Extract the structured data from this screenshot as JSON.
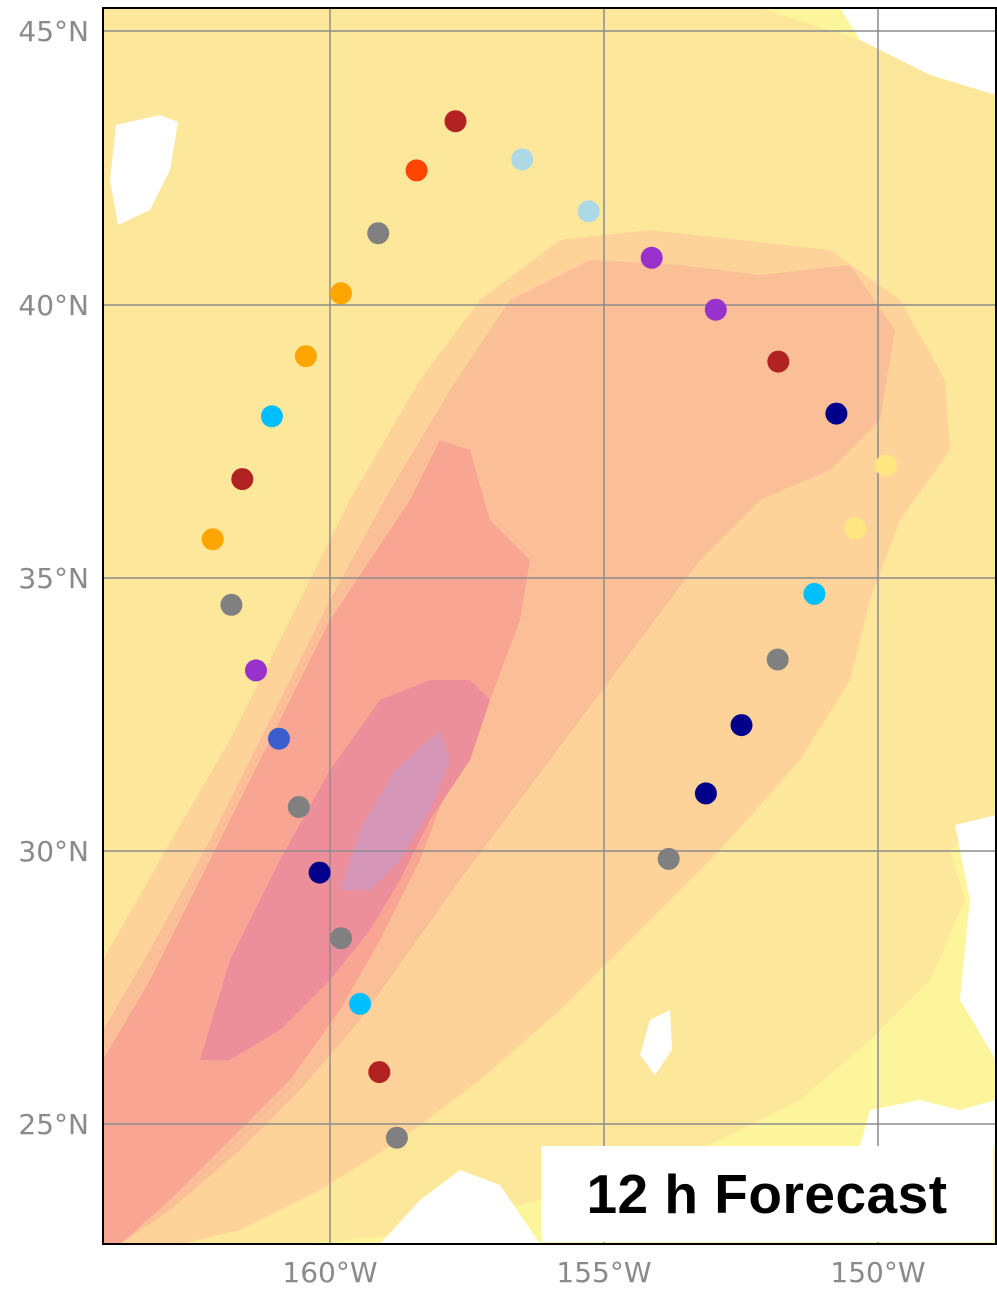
{
  "map": {
    "lat_labels": [
      "45°N",
      "40°N",
      "35°N",
      "30°N",
      "25°N"
    ],
    "lon_labels": [
      "160°W",
      "155°W",
      "150°W"
    ],
    "label": "12 h Forecast",
    "colors": {
      "ocean_light": "#fdf59b",
      "band_1": "#fde79a",
      "band_2": "#fdd39a",
      "band_3": "#fbbf98",
      "band_4": "#f9a594",
      "band_5": "#ec8f9a",
      "band_6": "#d696b8",
      "land": "#ffffff",
      "grid": "#8c8c8c",
      "frame": "#000000"
    },
    "points": [
      {
        "lat": 43.35,
        "lon": -157.71,
        "color": "#b22222"
      },
      {
        "lat": 42.45,
        "lon": -158.42,
        "color": "#ff4500"
      },
      {
        "lat": 42.65,
        "lon": -156.49,
        "color": "#add8e6"
      },
      {
        "lat": 41.7,
        "lon": -155.28,
        "color": "#add8e6"
      },
      {
        "lat": 41.3,
        "lon": -159.12,
        "color": "#808080"
      },
      {
        "lat": 40.85,
        "lon": -154.13,
        "color": "#9932cc"
      },
      {
        "lat": 40.2,
        "lon": -159.8,
        "color": "#ffa500"
      },
      {
        "lat": 39.9,
        "lon": -152.96,
        "color": "#9932cc"
      },
      {
        "lat": 39.05,
        "lon": -160.44,
        "color": "#ffa500"
      },
      {
        "lat": 38.95,
        "lon": -151.82,
        "color": "#b22222"
      },
      {
        "lat": 38.0,
        "lon": -150.76,
        "color": "#00008b"
      },
      {
        "lat": 37.95,
        "lon": -161.06,
        "color": "#00bfff"
      },
      {
        "lat": 37.05,
        "lon": -149.85,
        "color": "#ffe680"
      },
      {
        "lat": 36.8,
        "lon": -161.6,
        "color": "#b22222"
      },
      {
        "lat": 35.9,
        "lon": -150.42,
        "color": "#ffe680"
      },
      {
        "lat": 35.7,
        "lon": -162.14,
        "color": "#ffa500"
      },
      {
        "lat": 34.7,
        "lon": -151.16,
        "color": "#00bfff"
      },
      {
        "lat": 34.5,
        "lon": -161.8,
        "color": "#808080"
      },
      {
        "lat": 33.5,
        "lon": -151.83,
        "color": "#808080"
      },
      {
        "lat": 33.3,
        "lon": -161.35,
        "color": "#9932cc"
      },
      {
        "lat": 32.3,
        "lon": -152.49,
        "color": "#00008b"
      },
      {
        "lat": 32.05,
        "lon": -160.93,
        "color": "#3a5fcd"
      },
      {
        "lat": 31.05,
        "lon": -153.14,
        "color": "#00008b"
      },
      {
        "lat": 30.8,
        "lon": -160.57,
        "color": "#808080"
      },
      {
        "lat": 29.85,
        "lon": -153.82,
        "color": "#808080"
      },
      {
        "lat": 29.6,
        "lon": -160.19,
        "color": "#00008b"
      },
      {
        "lat": 28.4,
        "lon": -159.8,
        "color": "#808080"
      },
      {
        "lat": 27.2,
        "lon": -159.45,
        "color": "#00bfff"
      },
      {
        "lat": 25.95,
        "lon": -159.1,
        "color": "#b22222"
      },
      {
        "lat": 24.75,
        "lon": -158.78,
        "color": "#808080"
      }
    ]
  }
}
